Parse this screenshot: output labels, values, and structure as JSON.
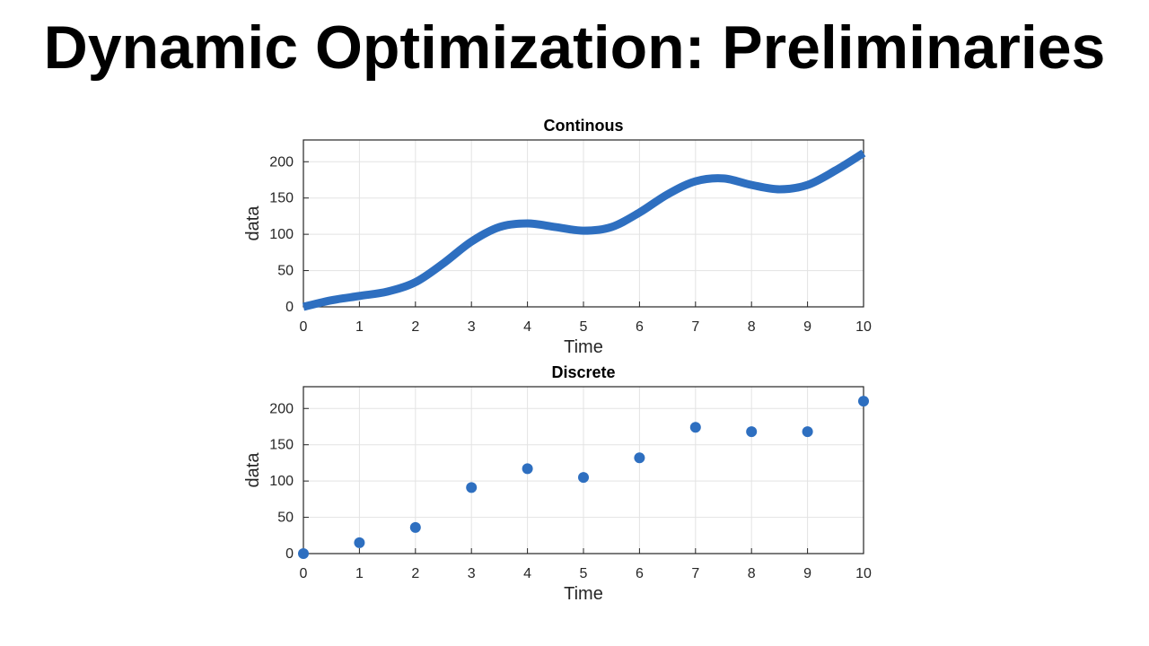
{
  "slide_title": "Dynamic Optimization: Preliminaries",
  "colors": {
    "series": "#2e6fc0",
    "grid": "#e3e3e3",
    "axis": "#262626"
  },
  "chart_data": [
    {
      "type": "line",
      "title": "Continous",
      "xlabel": "Time",
      "ylabel": "data",
      "xlim": [
        0,
        10
      ],
      "ylim": [
        0,
        230
      ],
      "xticks": [
        0,
        1,
        2,
        3,
        4,
        5,
        6,
        7,
        8,
        9,
        10
      ],
      "yticks": [
        0,
        50,
        100,
        150,
        200
      ],
      "grid": true,
      "x": [
        0,
        0.5,
        1,
        1.5,
        2,
        2.5,
        3,
        3.5,
        4,
        4.5,
        5,
        5.5,
        6,
        6.5,
        7,
        7.5,
        8,
        8.5,
        9,
        9.5,
        10
      ],
      "y": [
        0,
        9,
        15,
        21,
        34,
        60,
        90,
        110,
        115,
        110,
        105,
        110,
        130,
        155,
        173,
        177,
        168,
        162,
        168,
        188,
        212
      ]
    },
    {
      "type": "scatter",
      "title": "Discrete",
      "xlabel": "Time",
      "ylabel": "data",
      "xlim": [
        0,
        10
      ],
      "ylim": [
        0,
        230
      ],
      "xticks": [
        0,
        1,
        2,
        3,
        4,
        5,
        6,
        7,
        8,
        9,
        10
      ],
      "yticks": [
        0,
        50,
        100,
        150,
        200
      ],
      "grid": true,
      "x": [
        0,
        1,
        2,
        3,
        4,
        5,
        6,
        7,
        8,
        9,
        10
      ],
      "y": [
        0,
        15,
        36,
        91,
        117,
        105,
        132,
        174,
        168,
        168,
        210
      ]
    }
  ]
}
